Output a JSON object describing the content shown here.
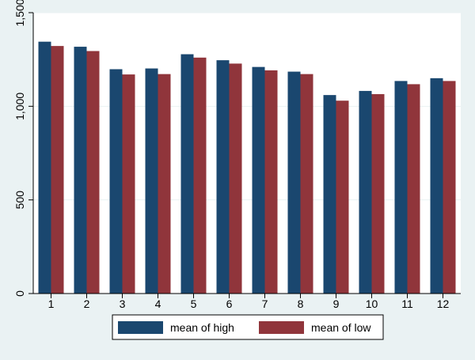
{
  "chart_data": {
    "type": "bar",
    "title": "",
    "xlabel": "",
    "ylabel": "",
    "categories": [
      "1",
      "2",
      "3",
      "4",
      "5",
      "6",
      "7",
      "8",
      "9",
      "10",
      "11",
      "12"
    ],
    "series": [
      {
        "name": "mean of high",
        "color": "#1a476f",
        "values": [
          1345,
          1318,
          1198,
          1202,
          1278,
          1246,
          1210,
          1185,
          1060,
          1082,
          1135,
          1150
        ]
      },
      {
        "name": "mean of low",
        "color": "#90353b",
        "values": [
          1322,
          1295,
          1170,
          1172,
          1260,
          1228,
          1192,
          1172,
          1030,
          1065,
          1118,
          1135
        ]
      }
    ],
    "ylim": [
      0,
      1500
    ],
    "yticks": [
      0,
      500,
      1000,
      1500
    ],
    "ytick_labels": [
      "0",
      "500",
      "1,000",
      "1,500"
    ],
    "grid": "horizontal",
    "legend_position": "bottom",
    "background_color": "#eaf2f3",
    "plot_background_color": "#ffffff"
  }
}
